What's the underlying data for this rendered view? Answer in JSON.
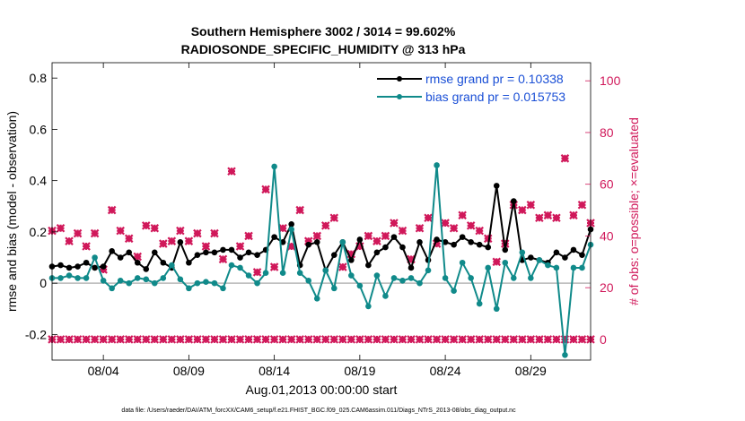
{
  "colors": {
    "rmse": "#000000",
    "bias": "#108a8a",
    "counts": "#d0185a",
    "legend_text": "#1a4fd6",
    "zero_line": "#b8b8b8"
  },
  "chart_data": {
    "type": "line",
    "title_line1": "Southern Hemisphere 3002 / 3014 = 99.602%",
    "title_line2": "RADIOSONDE_SPECIFIC_HUMIDITY @ 313 hPa",
    "xlabel": "Aug.01,2013 00:00:00 start",
    "ylabel_left": "rmse and bias (model - observation)",
    "ylabel_right": "# of obs: o=possible; ×=evaluated",
    "xlim": [
      0,
      31.5
    ],
    "ylim_left": [
      -0.3,
      0.86
    ],
    "ylim_right": [
      -8,
      107
    ],
    "x_tick_positions": [
      3,
      8,
      13,
      18,
      23,
      28
    ],
    "x_tick_labels": [
      "08/04",
      "08/09",
      "08/14",
      "08/19",
      "08/24",
      "08/29"
    ],
    "y_left_ticks": [
      -0.2,
      0,
      0.2,
      0.4,
      0.6,
      0.8
    ],
    "y_left_tick_labels": [
      "-0.2",
      "0",
      "0.2",
      "0.4",
      "0.6",
      "0.8"
    ],
    "y_right_ticks": [
      0,
      20,
      40,
      60,
      80,
      100
    ],
    "y_right_tick_labels": [
      "0",
      "20",
      "40",
      "60",
      "80",
      "100"
    ],
    "x": [
      0.0,
      0.5,
      1.0,
      1.5,
      2.0,
      2.5,
      3.0,
      3.5,
      4.0,
      4.5,
      5.0,
      5.5,
      6.0,
      6.5,
      7.0,
      7.5,
      8.0,
      8.5,
      9.0,
      9.5,
      10.0,
      10.5,
      11.0,
      11.5,
      12.0,
      12.5,
      13.0,
      13.5,
      14.0,
      14.5,
      15.0,
      15.5,
      16.0,
      16.5,
      17.0,
      17.5,
      18.0,
      18.5,
      19.0,
      19.5,
      20.0,
      20.5,
      21.0,
      21.5,
      22.0,
      22.5,
      23.0,
      23.5,
      24.0,
      24.5,
      25.0,
      25.5,
      26.0,
      26.5,
      27.0,
      27.5,
      28.0,
      28.5,
      29.0,
      29.5,
      30.0,
      30.5,
      31.0,
      31.5
    ],
    "series": [
      {
        "name": "rmse",
        "legend_label": "rmse grand pr = 0.10338",
        "values": [
          0.065,
          0.07,
          0.06,
          0.065,
          0.08,
          0.06,
          0.065,
          0.125,
          0.1,
          0.12,
          0.08,
          0.055,
          0.12,
          0.08,
          0.06,
          0.16,
          0.08,
          0.11,
          0.12,
          0.12,
          0.13,
          0.13,
          0.1,
          0.12,
          0.11,
          0.13,
          0.18,
          0.16,
          0.23,
          0.07,
          0.15,
          0.16,
          0.05,
          0.11,
          0.16,
          0.09,
          0.17,
          0.07,
          0.12,
          0.14,
          0.18,
          0.14,
          0.06,
          0.16,
          0.09,
          0.17,
          0.16,
          0.15,
          0.18,
          0.16,
          0.15,
          0.14,
          0.38,
          0.13,
          0.32,
          0.09,
          0.1,
          0.09,
          0.08,
          0.12,
          0.1,
          0.13,
          0.11,
          0.21
        ]
      },
      {
        "name": "bias",
        "legend_label": "bias grand pr = 0.015753",
        "values": [
          0.02,
          0.02,
          0.03,
          0.02,
          0.02,
          0.1,
          0.01,
          -0.02,
          0.01,
          0.0,
          0.02,
          0.015,
          0.0,
          0.02,
          0.07,
          0.015,
          -0.02,
          0.0,
          0.005,
          0.0,
          -0.02,
          0.07,
          0.06,
          0.03,
          0.0,
          0.04,
          0.455,
          0.04,
          0.21,
          0.04,
          0.01,
          -0.06,
          0.05,
          -0.02,
          0.16,
          0.03,
          -0.01,
          -0.09,
          0.03,
          -0.05,
          0.02,
          0.01,
          0.02,
          0.0,
          0.05,
          0.46,
          0.02,
          -0.03,
          0.08,
          0.02,
          -0.08,
          0.06,
          -0.1,
          0.08,
          0.02,
          0.12,
          0.02,
          0.09,
          0.07,
          0.06,
          -0.28,
          0.06,
          0.06,
          0.15
        ]
      },
      {
        "name": "obs_possible",
        "values": [
          42,
          43,
          38,
          41,
          36,
          41,
          27,
          50,
          42,
          39,
          32,
          44,
          43,
          37,
          38,
          42,
          38,
          41,
          36,
          41,
          31,
          65,
          36,
          40,
          26,
          58,
          28,
          43,
          36,
          50,
          38,
          40,
          44,
          47,
          28,
          33,
          36,
          40,
          38,
          40,
          45,
          42,
          31,
          43,
          47,
          37,
          45,
          43,
          48,
          44,
          42,
          39,
          30,
          37,
          52,
          50,
          52,
          47,
          48,
          47,
          70,
          48,
          52,
          45
        ]
      },
      {
        "name": "obs_evaluated",
        "values": [
          42,
          43,
          38,
          41,
          36,
          41,
          27,
          50,
          42,
          39,
          32,
          44,
          43,
          37,
          38,
          42,
          38,
          41,
          36,
          41,
          31,
          65,
          36,
          40,
          26,
          58,
          28,
          43,
          36,
          50,
          38,
          40,
          44,
          47,
          28,
          33,
          36,
          40,
          38,
          40,
          45,
          42,
          31,
          43,
          47,
          37,
          45,
          43,
          48,
          44,
          42,
          39,
          30,
          37,
          52,
          50,
          52,
          47,
          48,
          47,
          70,
          48,
          52,
          45
        ]
      }
    ],
    "footer": "data file: /Users/raeder/DAI/ATM_forcXX/CAM6_setup/f.e21.FHIST_BGC.f09_025.CAM6assim.011/Diags_NTrS_2013-08/obs_diag_output.nc"
  }
}
